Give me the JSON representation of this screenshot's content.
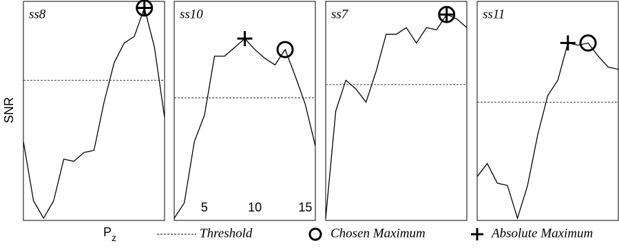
{
  "y_label": "SNR",
  "x_label": {
    "main": "P",
    "sub": "z"
  },
  "legend": {
    "threshold": "Threshold",
    "chosen": "Chosen Maximum",
    "absolute": "Absolute Maximum"
  },
  "chart_data": [
    {
      "type": "line",
      "title": "ss8",
      "x": [
        2,
        3,
        4,
        5,
        6,
        7,
        8,
        9,
        10,
        11,
        12,
        13,
        14,
        15,
        16
      ],
      "values": [
        3.6,
        0.9,
        0.1,
        0.9,
        2.8,
        2.7,
        3.1,
        3.2,
        5.4,
        7.2,
        8.1,
        8.4,
        9.7,
        7.9,
        4.7
      ],
      "color": "#000000",
      "xlim": [
        2,
        16
      ],
      "ylim": [
        0,
        10
      ],
      "threshold": 6.4,
      "chosen_max_x": 14,
      "absolute_max_x": 14
    },
    {
      "type": "line",
      "title": "ss10",
      "x": [
        2,
        3,
        4,
        5,
        6,
        7,
        8,
        9,
        10,
        11,
        12,
        13,
        14,
        15,
        16
      ],
      "values": [
        0.1,
        0.8,
        3.6,
        4.8,
        7.5,
        7.5,
        7.9,
        8.3,
        7.8,
        7.4,
        7.1,
        7.8,
        6.6,
        5.3,
        3.4
      ],
      "color": "#000000",
      "xlim": [
        2,
        16
      ],
      "ylim": [
        0,
        10
      ],
      "xticks": [
        5,
        10,
        15
      ],
      "threshold": 5.6,
      "chosen_max_x": 13,
      "absolute_max_x": 9
    },
    {
      "type": "line",
      "title": "ss7",
      "x": [
        2,
        3,
        4,
        5,
        6,
        7,
        8,
        9,
        10,
        11,
        12,
        13,
        14,
        15,
        16
      ],
      "values": [
        0.1,
        5.0,
        6.4,
        6.0,
        5.4,
        6.8,
        8.5,
        8.5,
        8.8,
        8.1,
        8.8,
        8.7,
        9.4,
        9.2,
        8.8
      ],
      "color": "#000000",
      "xlim": [
        2,
        16
      ],
      "ylim": [
        0,
        10
      ],
      "threshold": 6.2,
      "chosen_max_x": 14,
      "absolute_max_x": 14
    },
    {
      "type": "line",
      "title": "ss11",
      "x": [
        2,
        3,
        4,
        5,
        6,
        7,
        8,
        9,
        10,
        11,
        12,
        13,
        14,
        15,
        16
      ],
      "values": [
        2.0,
        2.6,
        1.7,
        1.6,
        0.1,
        1.6,
        3.9,
        5.7,
        6.4,
        8.1,
        8.0,
        8.1,
        7.5,
        7.0,
        6.9
      ],
      "color": "#000000",
      "xlim": [
        2,
        16
      ],
      "ylim": [
        0,
        10
      ],
      "threshold": 5.4,
      "chosen_max_x": 13,
      "absolute_max_x": 11
    }
  ]
}
